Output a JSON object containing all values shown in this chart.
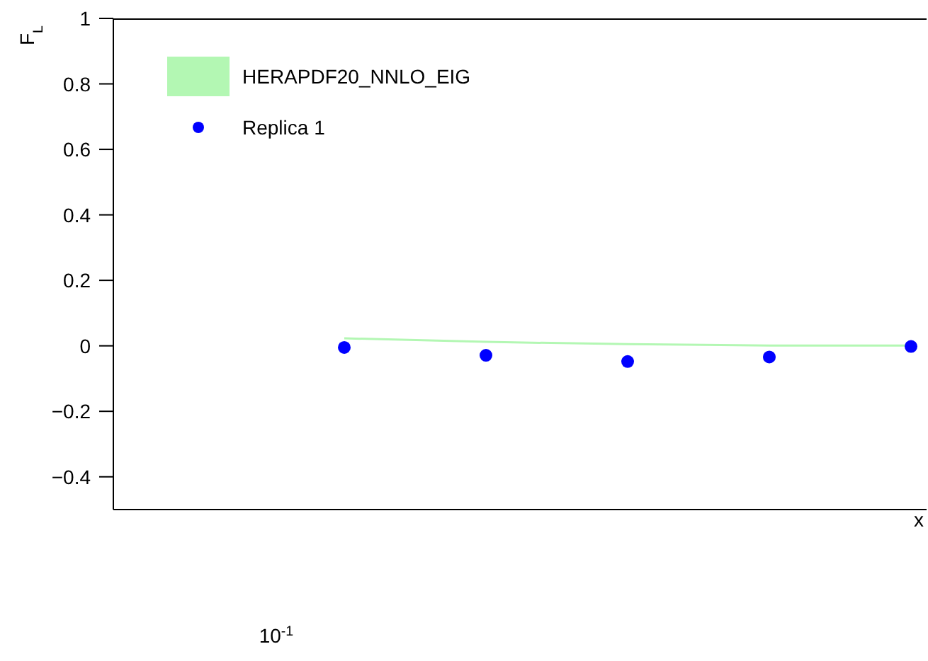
{
  "chart_data": {
    "type": "scatter",
    "xlabel": "x",
    "ylabel": "F$_{L}$",
    "categories": [
      null,
      null,
      null,
      null,
      null
    ],
    "ylim": [
      -0.5,
      1
    ],
    "yticks": [
      {
        "value": -0.4,
        "label": "−0.4"
      },
      {
        "value": -0.2,
        "label": "−0.2"
      },
      {
        "value": 0,
        "label": "0"
      },
      {
        "value": 0.2,
        "label": "0.2"
      },
      {
        "value": 0.4,
        "label": "0.4"
      },
      {
        "value": 0.6,
        "label": "0.6"
      },
      {
        "value": 0.8,
        "label": "0.8"
      },
      {
        "value": 1,
        "label": "1"
      }
    ],
    "annotations": [
      "10$^{-1}$"
    ],
    "legend": "top left",
    "series": [
      {
        "type": "line",
        "name": "HERAPDF20_NNLO_EIG",
        "color": "#b3f7b3",
        "values": [
          0.023,
          0.012,
          0.005,
          0.001,
          0.001
        ]
      },
      {
        "name": "Replica 1",
        "color": "#0000ff",
        "marker": "circle",
        "values": [
          -0.005,
          -0.029,
          -0.048,
          -0.034,
          -0.002
        ]
      }
    ]
  }
}
